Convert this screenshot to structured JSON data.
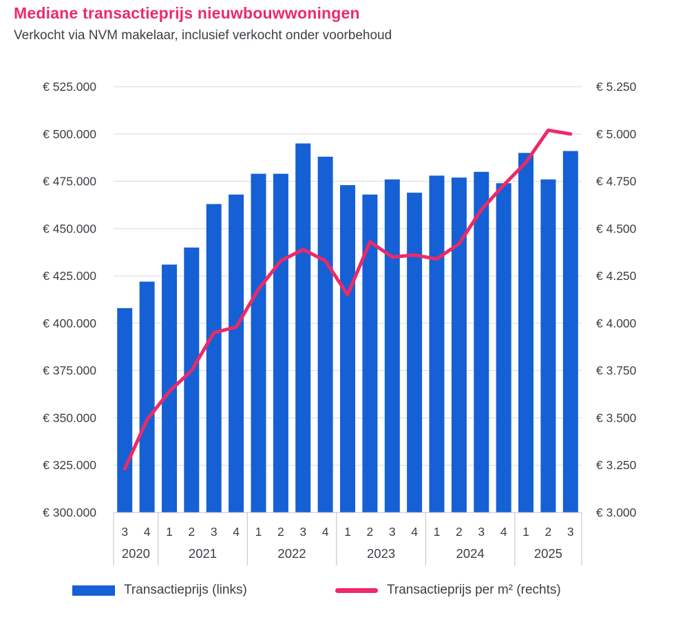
{
  "header": {
    "title": "Mediane transactieprijs nieuwbouwwoningen",
    "subtitle": "Verkocht via NVM makelaar, inclusief verkocht onder voorbehoud"
  },
  "chart_data": {
    "type": "bar",
    "title": "Mediane transactieprijs nieuwbouwwoningen",
    "subtitle": "Verkocht via NVM makelaar, inclusief verkocht onder voorbehoud",
    "quarters": [
      "3",
      "4",
      "1",
      "2",
      "3",
      "4",
      "1",
      "2",
      "3",
      "4",
      "1",
      "2",
      "3",
      "4",
      "1",
      "2",
      "3",
      "4",
      "1",
      "2",
      "3"
    ],
    "years": [
      {
        "label": "2020",
        "count": 2
      },
      {
        "label": "2021",
        "count": 4
      },
      {
        "label": "2022",
        "count": 4
      },
      {
        "label": "2023",
        "count": 4
      },
      {
        "label": "2024",
        "count": 4
      },
      {
        "label": "2025",
        "count": 3
      }
    ],
    "series": [
      {
        "name": "Transactieprijs (links)",
        "type": "bar",
        "axis": "left",
        "values": [
          408000,
          422000,
          431000,
          440000,
          463000,
          468000,
          479000,
          479000,
          495000,
          488000,
          473000,
          468000,
          476000,
          469000,
          478000,
          477000,
          480000,
          474000,
          490000,
          476000,
          491000
        ]
      },
      {
        "name": "Transactieprijs per m² (rechts)",
        "type": "line",
        "axis": "right",
        "values": [
          3230,
          3490,
          3640,
          3750,
          3950,
          3980,
          4180,
          4330,
          4390,
          4330,
          4150,
          4430,
          4350,
          4360,
          4340,
          4420,
          4600,
          4730,
          4850,
          5020,
          5000
        ]
      }
    ],
    "left_axis": {
      "min": 300000,
      "max": 525000,
      "step": 25000,
      "tick_labels": [
        "€ 300.000",
        "€ 325.000",
        "€ 350.000",
        "€ 375.000",
        "€ 400.000",
        "€ 425.000",
        "€ 450.000",
        "€ 475.000",
        "€ 500.000",
        "€ 525.000"
      ]
    },
    "right_axis": {
      "min": 3000,
      "max": 5250,
      "step": 250,
      "tick_labels": [
        "€ 3.000",
        "€ 3.250",
        "€ 3.500",
        "€ 3.750",
        "€ 4.000",
        "€ 4.250",
        "€ 4.500",
        "€ 4.750",
        "€ 5.000",
        "€ 5.250"
      ]
    },
    "legend": {
      "position": "bottom"
    },
    "grid": true,
    "colors": {
      "bar": "#1560d4",
      "line": "#ec2a67",
      "title": "#ec2a67",
      "grid": "#d9d9d9",
      "axis": "#c0c0c4",
      "text": "#3d3d46"
    }
  }
}
